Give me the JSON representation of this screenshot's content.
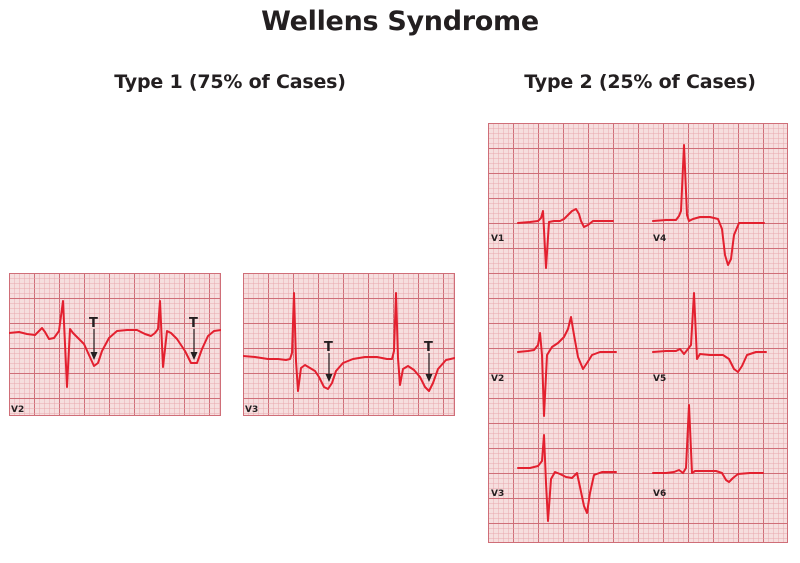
{
  "title": "Wellens Syndrome",
  "type1": {
    "heading": "Type 1 (75% of Cases)",
    "leads": [
      {
        "label": "V2",
        "marker": "T"
      },
      {
        "label": "V3",
        "marker": "T"
      }
    ]
  },
  "type2": {
    "heading": "Type 2 (25% of Cases)",
    "leads": [
      "V1",
      "V2",
      "V3",
      "V4",
      "V5",
      "V6"
    ]
  },
  "colors": {
    "grid_background": "#f6dede",
    "grid_minor": "#e8a8ae",
    "grid_major": "#cf6e78",
    "trace": "#e3202f",
    "arrow": "#231f20"
  }
}
